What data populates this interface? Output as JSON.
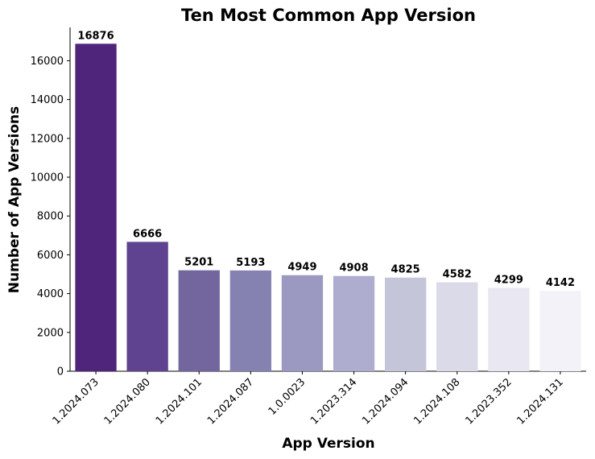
{
  "chart_data": {
    "type": "bar",
    "title": "Ten Most Common App Version",
    "xlabel": "App Version",
    "ylabel": "Number of App Versions",
    "categories": [
      "1.2024.073",
      "1.2024.080",
      "1.2024.101",
      "1.2024.087",
      "1.0.0023",
      "1.2023.314",
      "1.2024.094",
      "1.2024.108",
      "1.2023.352",
      "1.2024.131"
    ],
    "values": [
      16876,
      6666,
      5201,
      5193,
      4949,
      4908,
      4825,
      4582,
      4299,
      4142
    ],
    "data_labels": [
      "16876",
      "6666",
      "5201",
      "5193",
      "4949",
      "4908",
      "4825",
      "4582",
      "4299",
      "4142"
    ],
    "ylim": [
      0,
      17720
    ],
    "yticks": [
      0,
      2000,
      4000,
      6000,
      8000,
      10000,
      12000,
      14000,
      16000
    ],
    "ytick_labels": [
      "0",
      "2000",
      "4000",
      "6000",
      "8000",
      "10000",
      "12000",
      "14000",
      "16000"
    ],
    "grid": false,
    "legend": "none",
    "colors": [
      "#4f247b",
      "#5f4290",
      "#73669f",
      "#8581b1",
      "#9b98c2",
      "#aeadcf",
      "#c5c5da",
      "#dadae8",
      "#e8e7f2",
      "#f3f2f8"
    ],
    "xtick_rotation": "45"
  }
}
